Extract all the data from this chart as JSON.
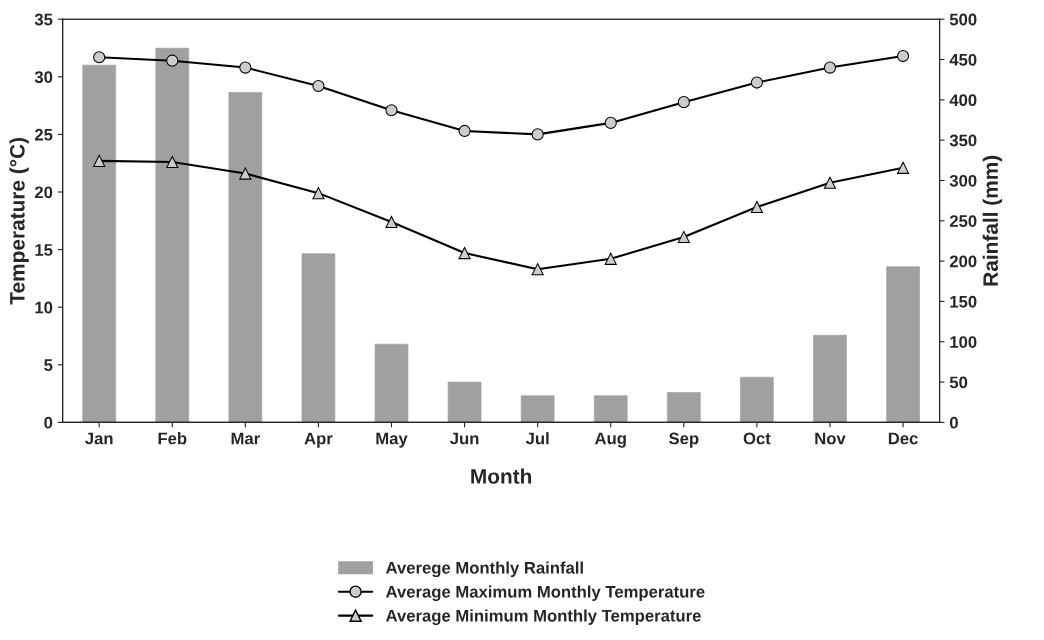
{
  "chart_data": {
    "type": "bar",
    "xlabel": "Month",
    "ylabel": "Temperature (°C)",
    "y2label": "Rainfall (mm)",
    "categories": [
      "Jan",
      "Feb",
      "Mar",
      "Apr",
      "May",
      "Jun",
      "Jul",
      "Aug",
      "Sep",
      "Oct",
      "Nov",
      "Dec"
    ],
    "series": [
      {
        "name": "Averege Monthly Rainfall",
        "axis": "y2",
        "color": "#a0a0a0",
        "values": [
          443,
          464,
          409,
          209,
          97,
          50,
          33,
          33,
          37,
          56,
          108,
          193
        ]
      },
      {
        "name": "Average Maximum Monthly Temperature",
        "type": "line",
        "marker": "circle",
        "color": "#000000",
        "values": [
          31.7,
          31.4,
          30.8,
          29.2,
          27.1,
          25.3,
          25.0,
          26.0,
          27.8,
          29.5,
          30.8,
          31.8
        ]
      },
      {
        "name": "Average Minimum Monthly Temperature",
        "type": "line",
        "marker": "triangle",
        "color": "#000000",
        "values": [
          22.7,
          22.6,
          21.6,
          19.9,
          17.4,
          14.7,
          13.3,
          14.2,
          16.1,
          18.7,
          20.8,
          22.1
        ]
      }
    ],
    "ylim": [
      0,
      35
    ],
    "yticks": [
      0,
      5,
      10,
      15,
      20,
      25,
      30,
      35
    ],
    "y2lim": [
      0,
      500
    ],
    "y2ticks": [
      0,
      50,
      100,
      150,
      200,
      250,
      300,
      350,
      400,
      450,
      500
    ],
    "legend": "bottom",
    "grid": false
  }
}
